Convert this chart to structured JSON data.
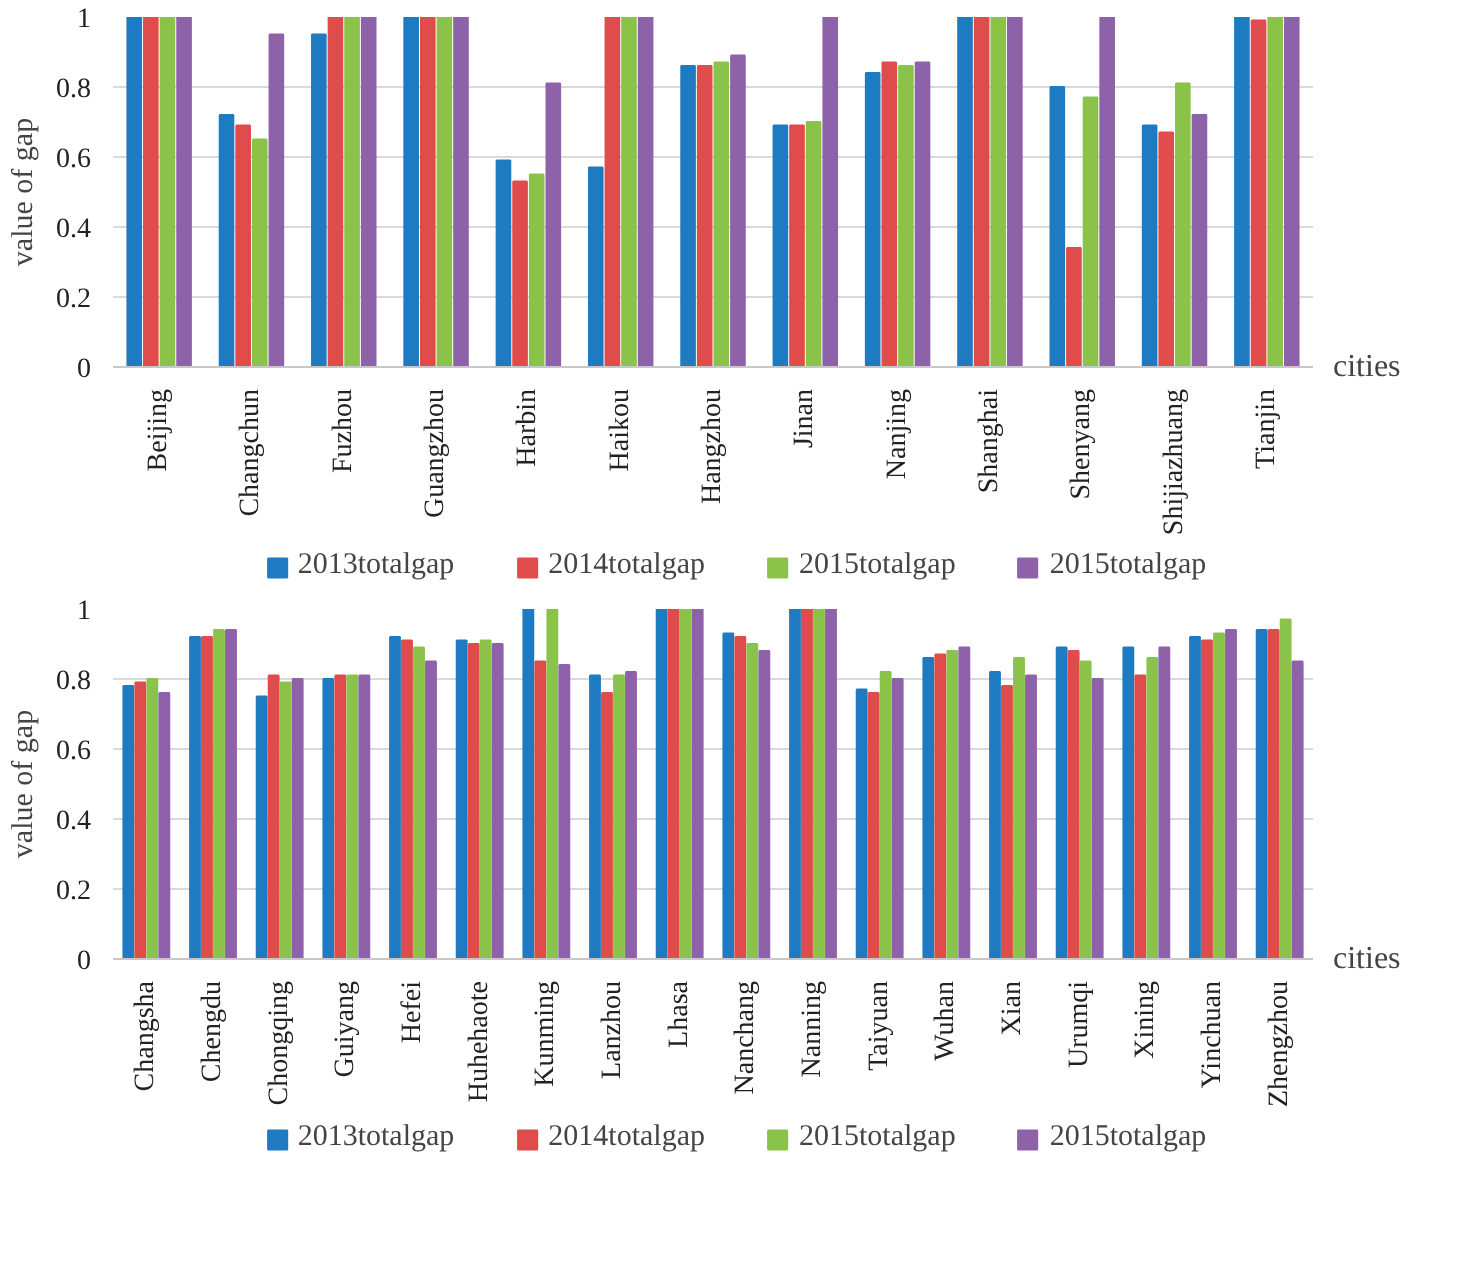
{
  "chart_data": [
    {
      "type": "bar",
      "xlabel": "cities",
      "ylabel": "value of gap",
      "categories": [
        "Beijing",
        "Changchun",
        "Fuzhou",
        "Guangzhou",
        "Harbin",
        "Haikou",
        "Hangzhou",
        "Jinan",
        "Nanjing",
        "Shanghai",
        "Shenyang",
        "Shijiazhuang",
        "Tianjin"
      ],
      "ylim": [
        0,
        1
      ],
      "yticks": [
        0,
        0.2,
        0.4,
        0.6,
        0.8,
        1
      ],
      "grid": "y",
      "legend": "bottom",
      "series": [
        {
          "name": "2013totalgap",
          "color": "#1f7bc1",
          "values": [
            1,
            0.72,
            0.95,
            1,
            0.59,
            0.57,
            0.86,
            0.69,
            0.84,
            1,
            0.8,
            0.69,
            1
          ]
        },
        {
          "name": "2014totalgap",
          "color": "#e04b4b",
          "values": [
            1,
            0.69,
            1,
            1,
            0.53,
            1,
            0.86,
            0.69,
            0.87,
            1,
            0.34,
            0.67,
            0.99
          ]
        },
        {
          "name": "2015totalgap",
          "color": "#8bc34a",
          "values": [
            1,
            0.65,
            1,
            1,
            0.55,
            1,
            0.87,
            0.7,
            0.86,
            1,
            0.77,
            0.81,
            1
          ]
        },
        {
          "name": "2015totalgap",
          "color": "#8e62a8",
          "values": [
            1,
            0.95,
            1,
            1,
            0.81,
            1,
            0.89,
            1,
            0.87,
            1,
            1,
            0.72,
            1
          ]
        }
      ]
    },
    {
      "type": "bar",
      "xlabel": "cities",
      "ylabel": "value of gap",
      "categories": [
        "Changsha",
        "Chengdu",
        "Chongqing",
        "Guiyang",
        "Hefei",
        "Huhehaote",
        "Kunming",
        "Lanzhou",
        "Lhasa",
        "Nanchang",
        "Nanning",
        "Taiyuan",
        "Wuhan",
        "Xian",
        "Urumqi",
        "Xining",
        "Yinchuan",
        "Zhengzhou"
      ],
      "ylim": [
        0,
        1
      ],
      "yticks": [
        0,
        0.2,
        0.4,
        0.6,
        0.8,
        1
      ],
      "grid": "y",
      "legend": "bottom",
      "series": [
        {
          "name": "2013totalgap",
          "color": "#1f7bc1",
          "values": [
            0.78,
            0.92,
            0.75,
            0.8,
            0.92,
            0.91,
            1,
            0.81,
            1,
            0.93,
            1,
            0.77,
            0.86,
            0.82,
            0.89,
            0.89,
            0.92,
            0.94
          ]
        },
        {
          "name": "2014totalgap",
          "color": "#e04b4b",
          "values": [
            0.79,
            0.92,
            0.81,
            0.81,
            0.91,
            0.9,
            0.85,
            0.76,
            1,
            0.92,
            1,
            0.76,
            0.87,
            0.78,
            0.88,
            0.81,
            0.91,
            0.94
          ]
        },
        {
          "name": "2015totalgap",
          "color": "#8bc34a",
          "values": [
            0.8,
            0.94,
            0.79,
            0.81,
            0.89,
            0.91,
            1,
            0.81,
            1,
            0.9,
            1,
            0.82,
            0.88,
            0.86,
            0.85,
            0.86,
            0.93,
            0.97
          ]
        },
        {
          "name": "2015totalgap",
          "color": "#8e62a8",
          "values": [
            0.76,
            0.94,
            0.8,
            0.81,
            0.85,
            0.9,
            0.84,
            0.82,
            1,
            0.88,
            1,
            0.8,
            0.89,
            0.81,
            0.8,
            0.89,
            0.94,
            0.85
          ]
        }
      ]
    }
  ]
}
